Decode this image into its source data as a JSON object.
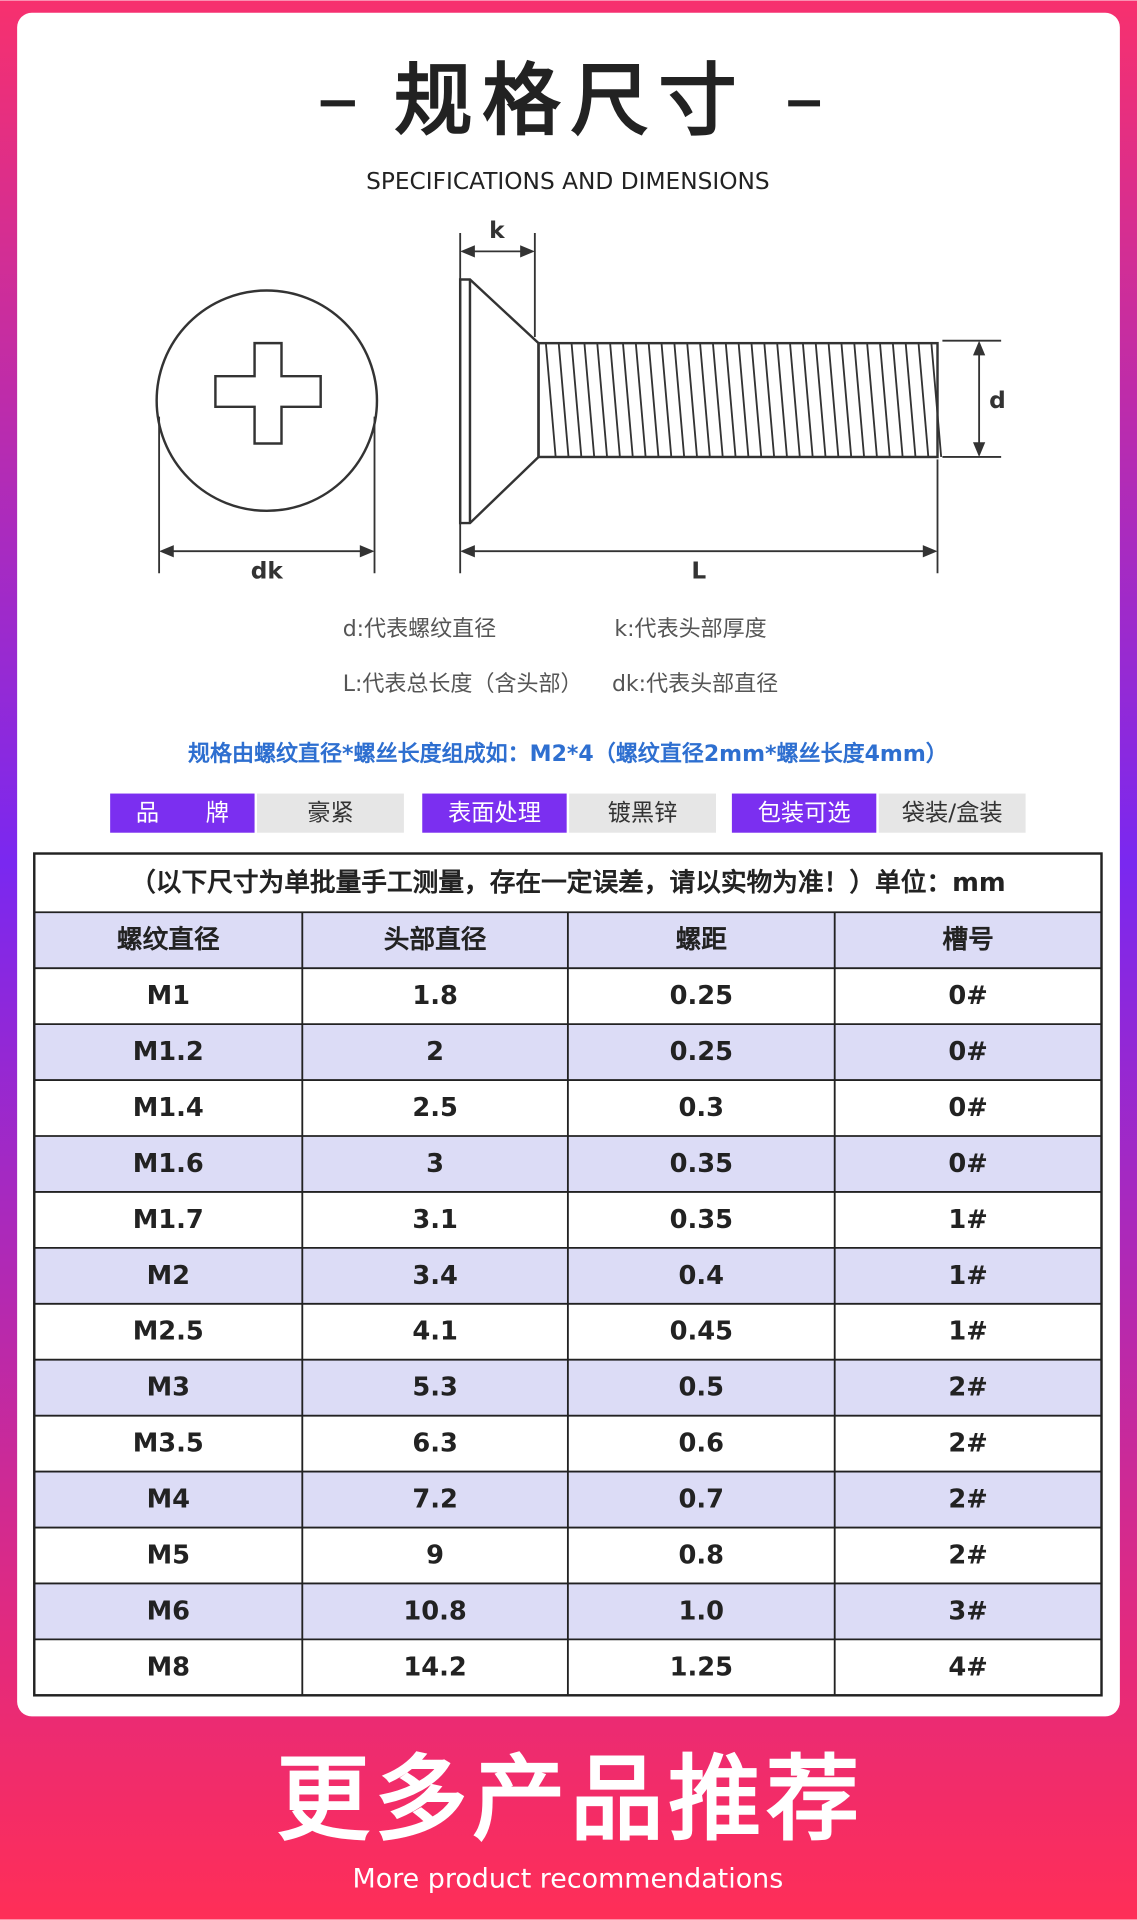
{
  "header": {
    "title": "规格尺寸",
    "subtitle": "SPECIFICATIONS AND DIMENSIONS"
  },
  "diagram": {
    "labels": {
      "k": "k",
      "d": "d",
      "dk": "dk",
      "L": "L"
    }
  },
  "legend": [
    "d:代表螺纹直径",
    "k:代表头部厚度",
    "L:代表总长度（含头部）",
    "dk:代表头部直径"
  ],
  "note": "规格由螺纹直径*螺丝长度组成如：M2*4（螺纹直径2mm*螺丝长度4mm）",
  "attributes": [
    {
      "label": "品　　牌",
      "value": "豪紧"
    },
    {
      "label": "表面处理",
      "value": "镀黑锌"
    },
    {
      "label": "包装可选",
      "value": "袋装/盒装"
    }
  ],
  "table": {
    "caption": "（以下尺寸为单批量手工测量，存在一定误差，请以实物为准！）单位：mm",
    "headers": [
      "螺纹直径",
      "头部直径",
      "螺距",
      "槽号"
    ],
    "rows": [
      [
        "M1",
        "1.8",
        "0.25",
        "0#"
      ],
      [
        "M1.2",
        "2",
        "0.25",
        "0#"
      ],
      [
        "M1.4",
        "2.5",
        "0.3",
        "0#"
      ],
      [
        "M1.6",
        "3",
        "0.35",
        "0#"
      ],
      [
        "M1.7",
        "3.1",
        "0.35",
        "1#"
      ],
      [
        "M2",
        "3.4",
        "0.4",
        "1#"
      ],
      [
        "M2.5",
        "4.1",
        "0.45",
        "1#"
      ],
      [
        "M3",
        "5.3",
        "0.5",
        "2#"
      ],
      [
        "M3.5",
        "6.3",
        "0.6",
        "2#"
      ],
      [
        "M4",
        "7.2",
        "0.7",
        "2#"
      ],
      [
        "M5",
        "9",
        "0.8",
        "2#"
      ],
      [
        "M6",
        "10.8",
        "1.0",
        "3#"
      ],
      [
        "M8",
        "14.2",
        "1.25",
        "4#"
      ]
    ]
  },
  "footer": {
    "title": "更多产品推荐",
    "subtitle": "More product recommendations"
  }
}
